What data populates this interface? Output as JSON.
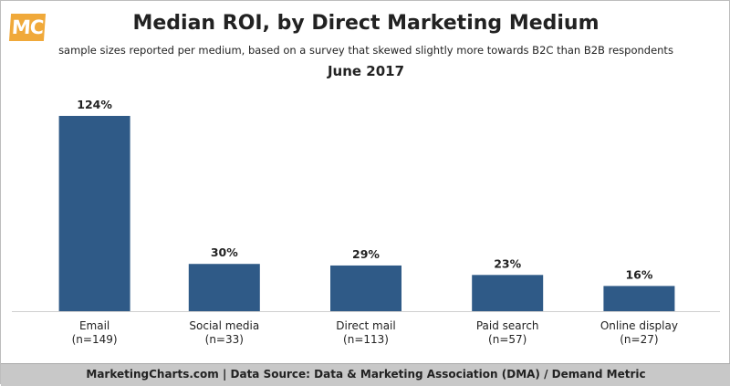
{
  "logo_text": "MC",
  "chart_data": {
    "type": "bar",
    "title": "Median ROI, by Direct Marketing Medium",
    "subtitle": "sample sizes reported per medium, based on a survey that skewed slightly more towards B2C than B2B respondents",
    "date_label": "June 2017",
    "categories": [
      "Email",
      "Social media",
      "Direct mail",
      "Paid search",
      "Online display"
    ],
    "sample_sizes": [
      "(n=149)",
      "(n=33)",
      "(n=113)",
      "(n=57)",
      "(n=27)"
    ],
    "values": [
      124,
      30,
      29,
      23,
      16
    ],
    "value_labels": [
      "124%",
      "30%",
      "29%",
      "23%",
      "16%"
    ],
    "ylim": [
      0,
      124
    ],
    "grid": false,
    "bar_color": "#2f5a87",
    "xlabel": "",
    "ylabel": ""
  },
  "footer": {
    "source": "MarketingCharts.com | Data Source: Data & Marketing Association (DMA) / Demand Metric"
  }
}
